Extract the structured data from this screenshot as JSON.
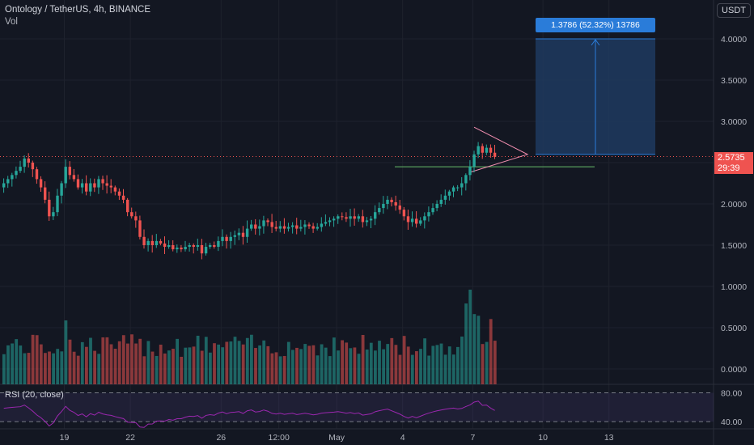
{
  "header": {
    "title": "Ontology / TetherUS, 4h, BINANCE",
    "volume_label": "Vol",
    "currency": "USDT"
  },
  "price_tag": {
    "price": "2.5735",
    "countdown": "29:39"
  },
  "position": {
    "label": "1.3786 (52.32%) 13786"
  },
  "rsi": {
    "label": "RSI (20, close)"
  },
  "colors": {
    "background": "#131722",
    "up": "#26a69a",
    "down": "#ef5350",
    "rsi_line": "#9c27b0",
    "position_fill": "#1e3a5f",
    "position_label": "#2a7cd9"
  },
  "chart_data": {
    "type": "candlestick",
    "symbol": "Ontology / TetherUS",
    "interval": "4h",
    "exchange": "BINANCE",
    "price_axis": {
      "ticks": [
        "4.0000",
        "3.5000",
        "3.0000",
        "2.5000",
        "2.0000",
        "1.5000",
        "1.0000",
        "0.5000",
        "0.0000"
      ],
      "values": [
        4,
        3.5,
        3,
        2.5,
        2,
        1.5,
        1,
        0.5,
        0
      ]
    },
    "rsi_axis": {
      "ticks": [
        "80.00",
        "40.00"
      ],
      "values": [
        80,
        40
      ]
    },
    "x_ticks": [
      {
        "label": "19",
        "bar": 15
      },
      {
        "label": "22",
        "bar": 31
      },
      {
        "label": "26",
        "bar": 53
      },
      {
        "label": "12:00",
        "bar": 67
      },
      {
        "label": "May",
        "bar": 81
      },
      {
        "label": "4",
        "bar": 97
      },
      {
        "label": "7",
        "bar": 114
      },
      {
        "label": "10",
        "bar": 131
      },
      {
        "label": "13",
        "bar": 147
      }
    ],
    "close": [
      2.25,
      2.3,
      2.35,
      2.4,
      2.45,
      2.55,
      2.5,
      2.42,
      2.3,
      2.2,
      2.05,
      1.85,
      1.9,
      2.1,
      2.25,
      2.45,
      2.35,
      2.3,
      2.2,
      2.25,
      2.15,
      2.25,
      2.2,
      2.3,
      2.25,
      2.22,
      2.2,
      2.15,
      2.1,
      2.05,
      1.9,
      1.85,
      1.8,
      1.6,
      1.5,
      1.55,
      1.5,
      1.55,
      1.52,
      1.48,
      1.5,
      1.45,
      1.47,
      1.45,
      1.48,
      1.5,
      1.48,
      1.5,
      1.4,
      1.48,
      1.5,
      1.48,
      1.55,
      1.6,
      1.55,
      1.6,
      1.62,
      1.65,
      1.6,
      1.7,
      1.75,
      1.7,
      1.73,
      1.8,
      1.78,
      1.72,
      1.7,
      1.73,
      1.7,
      1.72,
      1.74,
      1.7,
      1.72,
      1.75,
      1.73,
      1.7,
      1.72,
      1.76,
      1.78,
      1.8,
      1.82,
      1.85,
      1.84,
      1.82,
      1.85,
      1.82,
      1.85,
      1.78,
      1.8,
      1.82,
      1.9,
      1.95,
      2.0,
      2.05,
      2.02,
      1.98,
      1.93,
      1.85,
      1.78,
      1.82,
      1.76,
      1.8,
      1.85,
      1.9,
      1.95,
      2.0,
      2.05,
      2.1,
      2.15,
      2.2,
      2.2,
      2.25,
      2.35,
      2.45,
      2.6,
      2.7,
      2.62,
      2.68,
      2.62,
      2.57
    ],
    "volume_bars": 120,
    "rsi_range": [
      30,
      85
    ],
    "annotations": {
      "long_position": {
        "entry": 2.6,
        "target": 4.0,
        "label": "1.3786 (52.32%) 13786"
      },
      "triangle_pattern": {
        "apex_price": 2.6,
        "upper_start": 2.93,
        "lower_start": 2.38
      },
      "support_line": 2.45,
      "last_price_line": 2.5735
    }
  }
}
